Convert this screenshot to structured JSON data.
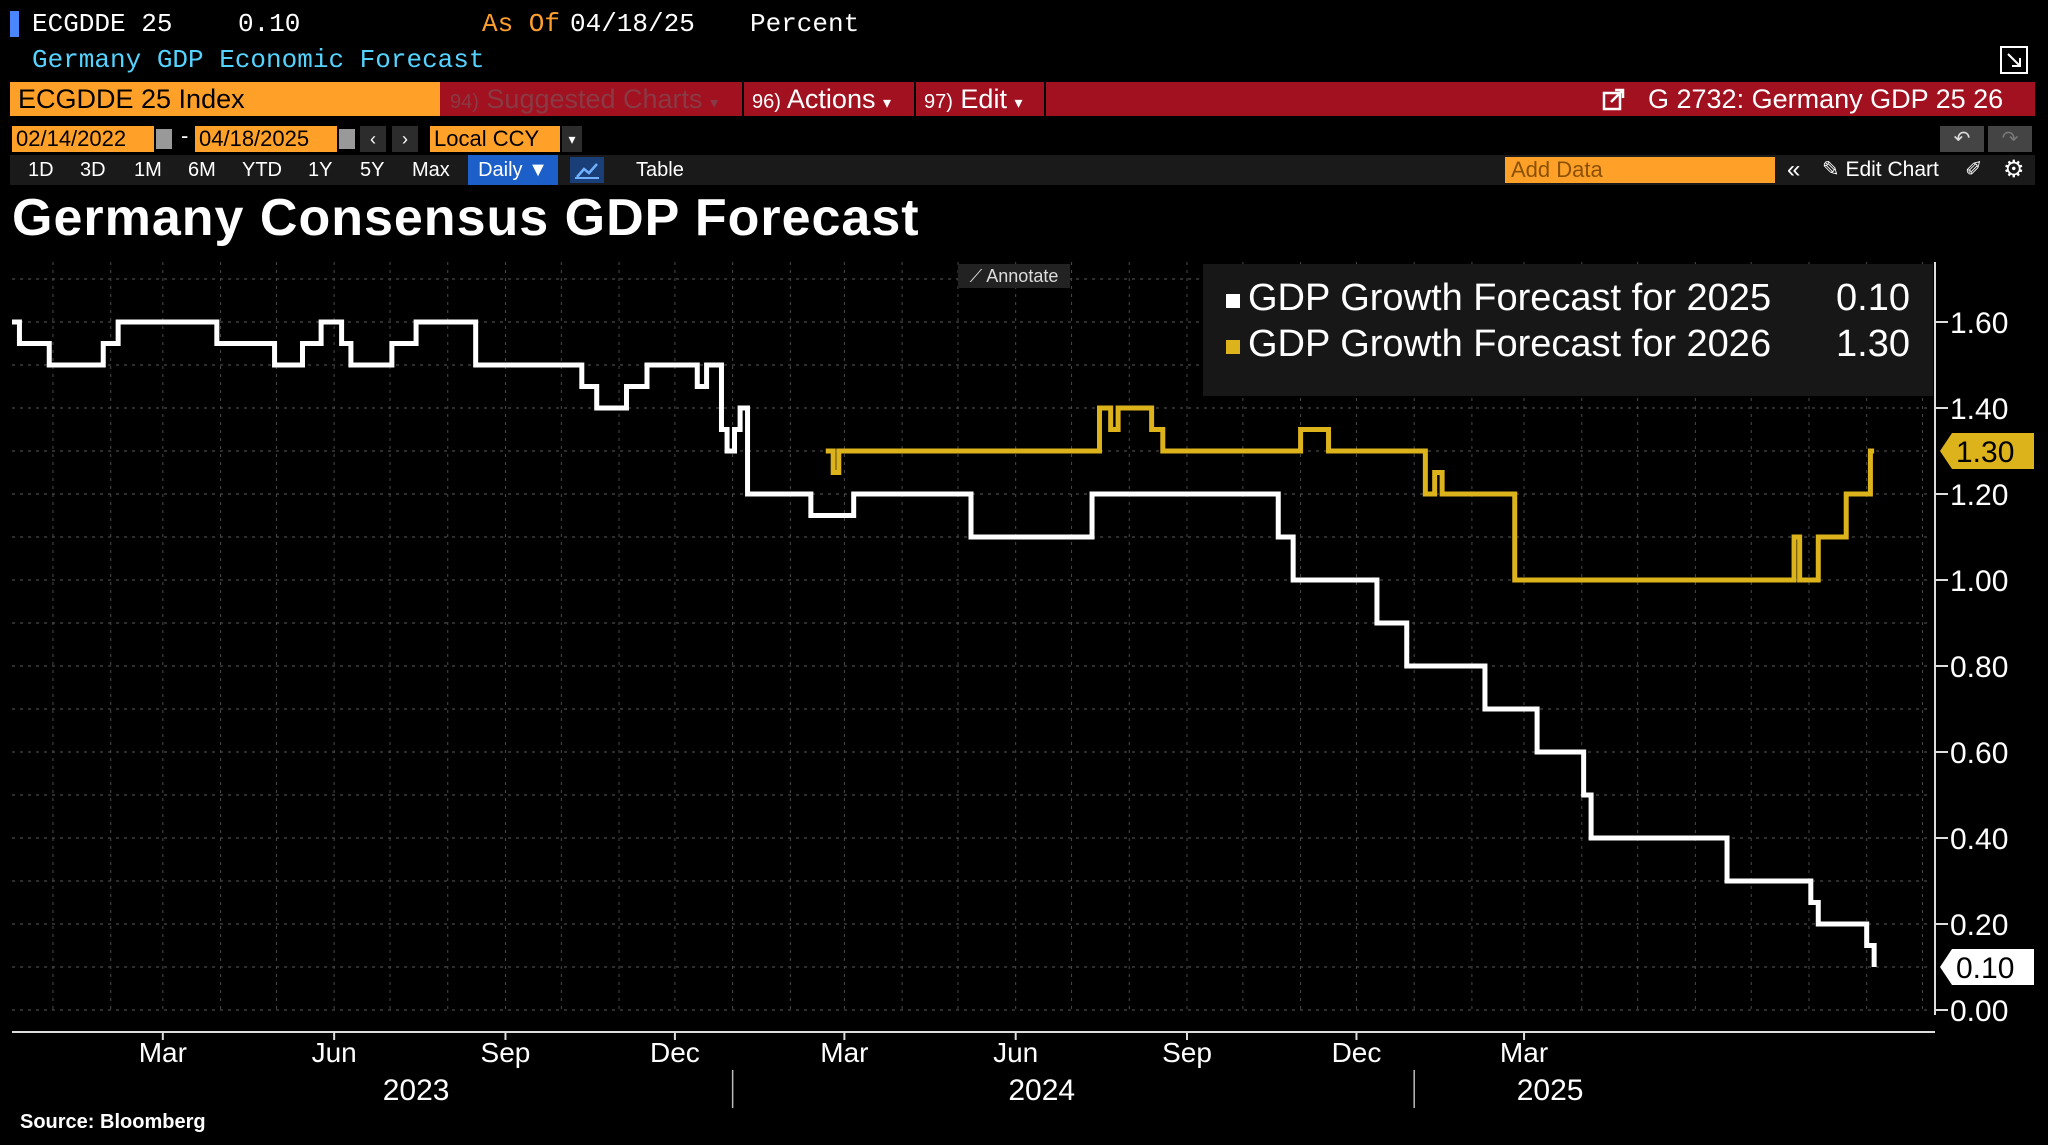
{
  "header": {
    "ticker": "ECGDDE 25",
    "value": "0.10",
    "as_of_label": "As Of",
    "as_of_date": "04/18/25",
    "unit": "Percent",
    "description": "Germany GDP Economic Forecast"
  },
  "toolbar": {
    "ticker_field": "ECGDDE 25 Index",
    "suggested_num": "94)",
    "suggested_label": "Suggested Charts",
    "actions_num": "96)",
    "actions_label": "Actions",
    "edit_num": "97)",
    "edit_label": "Edit",
    "chart_id": "G 2732: Germany GDP 25 26"
  },
  "dates": {
    "start": "02/14/2022",
    "end": "04/18/2025",
    "currency": "Local CCY"
  },
  "periods": [
    "1D",
    "3D",
    "1M",
    "6M",
    "YTD",
    "1Y",
    "5Y",
    "Max"
  ],
  "frequency": "Daily",
  "table_label": "Table",
  "add_data_placeholder": "Add Data",
  "edit_chart_label": "Edit Chart",
  "annotate_label": "Annotate",
  "source": "Source: Bloomberg",
  "colors": {
    "series_2025": "#ffffff",
    "series_2026": "#ddb31c",
    "accent_orange": "#ffa028",
    "toolbar_red": "#a1111f"
  },
  "chart_data": {
    "type": "line",
    "title": "Germany Consensus GDP Forecast",
    "xlabel": "",
    "ylabel": "",
    "ylim": [
      0,
      1.7
    ],
    "yticks": [
      "0.00",
      "0.20",
      "0.40",
      "0.60",
      "0.80",
      "1.00",
      "1.20",
      "1.40",
      "1.60"
    ],
    "xticks": [
      {
        "label": "Mar",
        "date": "2023-03-01"
      },
      {
        "label": "Jun",
        "date": "2023-06-01"
      },
      {
        "label": "Sep",
        "date": "2023-09-01"
      },
      {
        "label": "Dec",
        "date": "2023-12-01"
      },
      {
        "label": "Mar",
        "date": "2024-03-01"
      },
      {
        "label": "Jun",
        "date": "2024-06-01"
      },
      {
        "label": "Sep",
        "date": "2024-09-01"
      },
      {
        "label": "Dec",
        "date": "2024-12-01"
      },
      {
        "label": "Mar",
        "date": "2025-03-01"
      }
    ],
    "year_labels": [
      {
        "label": "2023",
        "date": "2023-07-15"
      },
      {
        "label": "2024",
        "date": "2024-06-15"
      },
      {
        "label": "2025",
        "date": "2025-03-15"
      }
    ],
    "year_dividers": [
      "2024-01-01",
      "2025-01-01"
    ],
    "grid": true,
    "legend_position": "top-right",
    "series": [
      {
        "name": "GDP Growth Forecast for 2025",
        "last_value": "0.10",
        "color": "#ffffff",
        "step": true,
        "points": [
          [
            "2022-12-10",
            1.6
          ],
          [
            "2022-12-14",
            1.55
          ],
          [
            "2022-12-30",
            1.5
          ],
          [
            "2023-01-28",
            1.55
          ],
          [
            "2023-02-05",
            1.6
          ],
          [
            "2023-03-30",
            1.55
          ],
          [
            "2023-04-30",
            1.5
          ],
          [
            "2023-05-15",
            1.55
          ],
          [
            "2023-05-25",
            1.6
          ],
          [
            "2023-06-05",
            1.55
          ],
          [
            "2023-06-10",
            1.5
          ],
          [
            "2023-07-02",
            1.55
          ],
          [
            "2023-07-15",
            1.6
          ],
          [
            "2023-08-16",
            1.5
          ],
          [
            "2023-10-12",
            1.45
          ],
          [
            "2023-10-20",
            1.4
          ],
          [
            "2023-11-05",
            1.45
          ],
          [
            "2023-11-16",
            1.5
          ],
          [
            "2023-12-13",
            1.45
          ],
          [
            "2023-12-18",
            1.5
          ],
          [
            "2023-12-26",
            1.35
          ],
          [
            "2023-12-29",
            1.3
          ],
          [
            "2024-01-02",
            1.35
          ],
          [
            "2024-01-05",
            1.4
          ],
          [
            "2024-01-09",
            1.2
          ],
          [
            "2024-02-12",
            1.15
          ],
          [
            "2024-03-06",
            1.2
          ],
          [
            "2024-05-08",
            1.1
          ],
          [
            "2024-07-12",
            1.2
          ],
          [
            "2024-10-20",
            1.1
          ],
          [
            "2024-10-28",
            1.0
          ],
          [
            "2024-12-12",
            0.9
          ],
          [
            "2024-12-28",
            0.8
          ],
          [
            "2025-02-08",
            0.7
          ],
          [
            "2025-03-08",
            0.6
          ],
          [
            "2025-04-02",
            0.5
          ],
          [
            "2025-04-06",
            0.4
          ],
          [
            "2025-06-18",
            0.3
          ],
          [
            "2025-08-02",
            0.25
          ],
          [
            "2025-08-06",
            0.2
          ],
          [
            "2025-09-01",
            0.15
          ],
          [
            "2025-09-05",
            0.1
          ]
        ]
      },
      {
        "name": "GDP Growth Forecast for 2026",
        "last_value": "1.30",
        "color": "#ddb31c",
        "step": true,
        "points": [
          [
            "2024-02-20",
            1.3
          ],
          [
            "2024-02-24",
            1.25
          ],
          [
            "2024-02-27",
            1.3
          ],
          [
            "2024-07-16",
            1.4
          ],
          [
            "2024-07-22",
            1.35
          ],
          [
            "2024-07-26",
            1.4
          ],
          [
            "2024-08-13",
            1.35
          ],
          [
            "2024-08-19",
            1.3
          ],
          [
            "2024-11-01",
            1.35
          ],
          [
            "2024-11-16",
            1.3
          ],
          [
            "2025-01-07",
            1.2
          ],
          [
            "2025-01-12",
            1.25
          ],
          [
            "2025-01-16",
            1.2
          ],
          [
            "2025-02-24",
            1.0
          ],
          [
            "2025-07-24",
            1.1
          ],
          [
            "2025-07-27",
            1.0
          ],
          [
            "2025-08-06",
            1.1
          ],
          [
            "2025-08-21",
            1.2
          ],
          [
            "2025-09-03",
            1.3
          ],
          [
            "2025-09-05",
            1.3
          ]
        ]
      }
    ]
  }
}
